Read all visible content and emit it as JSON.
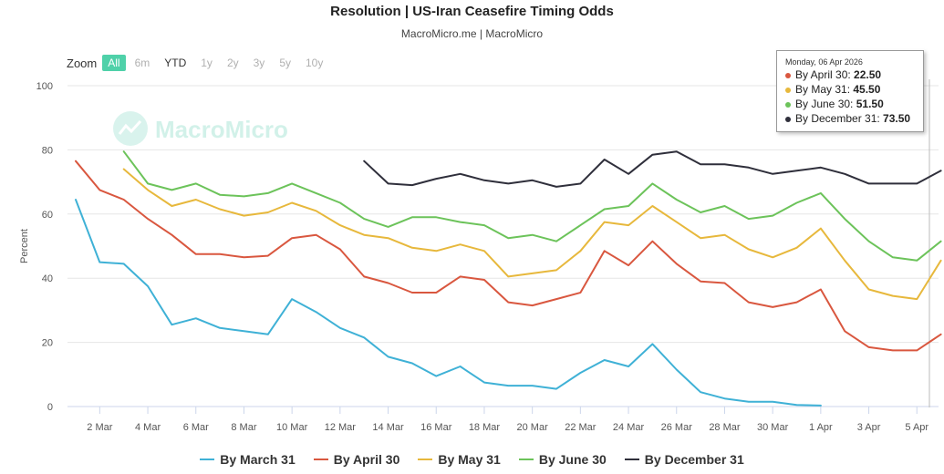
{
  "title": "Resolution | US-Iran Ceasefire Timing Odds",
  "subtitle": "MacroMicro.me | MacroMicro",
  "watermark": "MacroMicro",
  "zoom": {
    "label": "Zoom",
    "buttons": [
      {
        "label": "All",
        "state": "active"
      },
      {
        "label": "6m",
        "state": "disabled"
      },
      {
        "label": "YTD",
        "state": "enabled"
      },
      {
        "label": "1y",
        "state": "disabled"
      },
      {
        "label": "2y",
        "state": "disabled"
      },
      {
        "label": "3y",
        "state": "disabled"
      },
      {
        "label": "5y",
        "state": "disabled"
      },
      {
        "label": "10y",
        "state": "disabled"
      }
    ]
  },
  "tooltip": {
    "date": "Monday, 06 Apr 2026",
    "rows": [
      {
        "label": "By April 30: ",
        "value": "22.50",
        "color": "#d9573f"
      },
      {
        "label": "By May 31: ",
        "value": "45.50",
        "color": "#e7b83c"
      },
      {
        "label": "By June 30: ",
        "value": "51.50",
        "color": "#6cc35a"
      },
      {
        "label": "By December 31: ",
        "value": "73.50",
        "color": "#2f2f3b"
      }
    ]
  },
  "chart_data": {
    "type": "line",
    "title": "Resolution | US-Iran Ceasefire Timing Odds",
    "xlabel": "",
    "ylabel": "Percent",
    "ylim": [
      0,
      100
    ],
    "yticks": [
      0,
      20,
      40,
      60,
      80,
      100
    ],
    "xlim": [
      "2026-03-01",
      "2026-04-06"
    ],
    "xticks": [
      "2 Mar",
      "4 Mar",
      "6 Mar",
      "8 Mar",
      "10 Mar",
      "12 Mar",
      "14 Mar",
      "16 Mar",
      "18 Mar",
      "20 Mar",
      "22 Mar",
      "24 Mar",
      "26 Mar",
      "28 Mar",
      "30 Mar",
      "1 Apr",
      "3 Apr",
      "5 Apr"
    ],
    "grid": true,
    "legend_position": "bottom",
    "series": [
      {
        "name": "By March 31",
        "color": "#3fb1d6",
        "start": "2026-03-01",
        "values": [
          64.5,
          45,
          44.5,
          37.5,
          25.5,
          27.5,
          24.5,
          23.5,
          22.5,
          33.5,
          29.5,
          24.5,
          21.5,
          15.5,
          13.5,
          9.5,
          12.5,
          7.5,
          6.5,
          6.5,
          5.5,
          10.5,
          14.5,
          12.5,
          19.5,
          11.5,
          4.5,
          2.5,
          1.5,
          1.5,
          0.5,
          0.3
        ]
      },
      {
        "name": "By April 30",
        "color": "#d9573f",
        "start": "2026-03-01",
        "values": [
          76.5,
          67.5,
          64.5,
          58.5,
          53.5,
          47.5,
          47.5,
          46.5,
          47,
          52.5,
          53.5,
          49,
          40.5,
          38.5,
          35.5,
          35.5,
          40.5,
          39.5,
          32.5,
          31.5,
          33.5,
          35.5,
          48.5,
          44,
          51.5,
          44.5,
          39,
          38.5,
          32.5,
          31,
          32.5,
          36.5,
          23.5,
          18.5,
          17.5,
          17.5,
          22.5
        ]
      },
      {
        "name": "By May 31",
        "color": "#e7b83c",
        "start": "2026-03-03",
        "values": [
          74,
          67.5,
          62.5,
          64.5,
          61.5,
          59.5,
          60.5,
          63.5,
          61,
          56.5,
          53.5,
          52.5,
          49.5,
          48.5,
          50.5,
          48.5,
          40.5,
          41.5,
          42.5,
          48.5,
          57.5,
          56.5,
          62.5,
          57.5,
          52.5,
          53.5,
          49,
          46.5,
          49.5,
          55.5,
          45.5,
          36.5,
          34.5,
          33.5,
          45.5
        ]
      },
      {
        "name": "By June 30",
        "color": "#6cc35a",
        "start": "2026-03-03",
        "values": [
          79.5,
          69.5,
          67.5,
          69.5,
          66,
          65.5,
          66.5,
          69.5,
          66.5,
          63.5,
          58.5,
          56,
          59,
          59,
          57.5,
          56.5,
          52.5,
          53.5,
          51.5,
          56.5,
          61.5,
          62.5,
          69.5,
          64.5,
          60.5,
          62.5,
          58.5,
          59.5,
          63.5,
          66.5,
          58.5,
          51.5,
          46.5,
          45.5,
          51.5
        ]
      },
      {
        "name": "By December 31",
        "color": "#2f2f3b",
        "start": "2026-03-13",
        "values": [
          76.5,
          69.5,
          69,
          71,
          72.5,
          70.5,
          69.5,
          70.5,
          68.5,
          69.5,
          77,
          72.5,
          78.5,
          79.5,
          75.5,
          75.5,
          74.5,
          72.5,
          73.5,
          74.5,
          72.5,
          69.5,
          69.5,
          69.5,
          73.5
        ]
      }
    ]
  }
}
